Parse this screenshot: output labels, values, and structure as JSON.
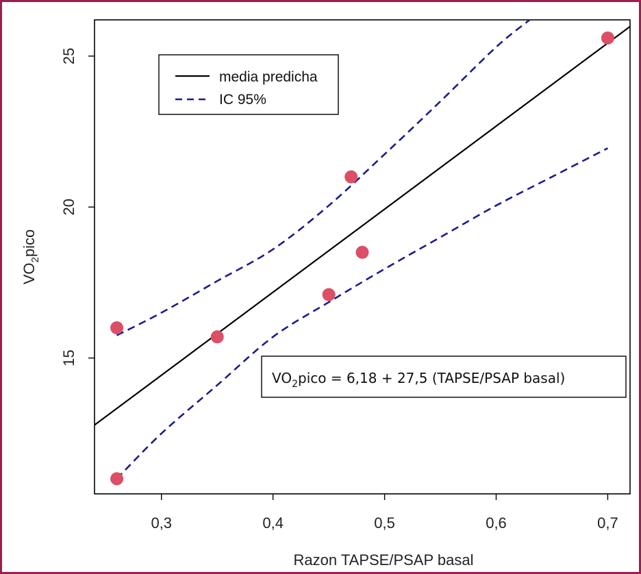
{
  "colors": {
    "frame": "#9c1f52",
    "fit_line": "#000000",
    "ci_line": "#1b1b8f",
    "points": "#dc4f66"
  },
  "chart_data": {
    "type": "scatter",
    "title": "",
    "xlabel": "Razon TAPSE/PSAP basal",
    "ylabel": {
      "pre": "VO",
      "sub": "2",
      "post": "pico"
    },
    "xlim": [
      0.24,
      0.72
    ],
    "ylim": [
      10.5,
      26.2
    ],
    "x_ticks": [
      0.3,
      0.4,
      0.5,
      0.6,
      0.7
    ],
    "x_tick_labels": [
      "0,3",
      "0,4",
      "0,5",
      "0,6",
      "0,7"
    ],
    "y_ticks": [
      15,
      20,
      25
    ],
    "y_tick_labels": [
      "15",
      "20",
      "25"
    ],
    "grid": false,
    "legend": {
      "position": "top-left",
      "entries": [
        {
          "label": "media predicha",
          "style": "solid"
        },
        {
          "label": "IC 95%",
          "style": "dashed"
        }
      ]
    },
    "points": [
      {
        "x": 0.26,
        "y": 16.0
      },
      {
        "x": 0.26,
        "y": 11.0
      },
      {
        "x": 0.35,
        "y": 15.7
      },
      {
        "x": 0.45,
        "y": 17.1
      },
      {
        "x": 0.47,
        "y": 21.0
      },
      {
        "x": 0.48,
        "y": 18.5
      },
      {
        "x": 0.7,
        "y": 25.6
      }
    ],
    "regression": {
      "intercept": 6.18,
      "slope": 27.5
    },
    "ci_upper": [
      {
        "x": 0.26,
        "y": 15.75
      },
      {
        "x": 0.3,
        "y": 16.5
      },
      {
        "x": 0.35,
        "y": 17.55
      },
      {
        "x": 0.4,
        "y": 18.6
      },
      {
        "x": 0.45,
        "y": 20.05
      },
      {
        "x": 0.5,
        "y": 21.75
      },
      {
        "x": 0.55,
        "y": 23.5
      },
      {
        "x": 0.6,
        "y": 25.3
      },
      {
        "x": 0.63,
        "y": 26.2
      }
    ],
    "ci_lower": [
      {
        "x": 0.26,
        "y": 11.0
      },
      {
        "x": 0.3,
        "y": 12.5
      },
      {
        "x": 0.35,
        "y": 14.1
      },
      {
        "x": 0.4,
        "y": 15.7
      },
      {
        "x": 0.45,
        "y": 16.85
      },
      {
        "x": 0.5,
        "y": 17.95
      },
      {
        "x": 0.55,
        "y": 19.0
      },
      {
        "x": 0.6,
        "y": 20.05
      },
      {
        "x": 0.65,
        "y": 21.0
      },
      {
        "x": 0.7,
        "y": 21.95
      }
    ],
    "annotation": {
      "pre": "VO",
      "sub": "2",
      "post": "pico = 6,18 + 27,5 (TAPSE/PSAP basal)"
    }
  }
}
